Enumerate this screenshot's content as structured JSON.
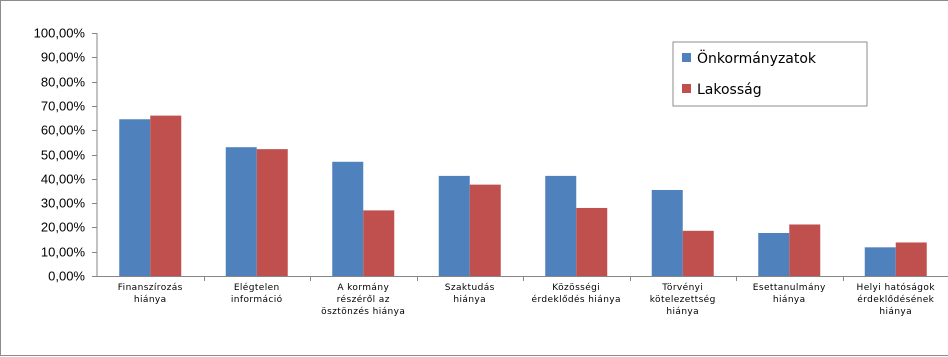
{
  "chart_data": {
    "type": "bar",
    "categories": [
      "Finanszírozás hiánya",
      "Elégtelen információ",
      "A kormány részéről az ösztönzés hiánya",
      "Szaktudás hiánya",
      "Közösségi érdeklődés hiánya",
      "Törvényi kötelezettség hiánya",
      "Esettanulmány hiánya",
      "Helyi hatóságok érdeklődésének hiánya"
    ],
    "category_lines": [
      [
        "Finanszírozás",
        "hiánya"
      ],
      [
        "Elégtelen",
        "információ"
      ],
      [
        "A kormány",
        "részéről az",
        "ösztönzés hiánya"
      ],
      [
        "Szaktudás",
        "hiánya"
      ],
      [
        "Közösségi",
        "érdeklődés hiánya"
      ],
      [
        "Törvényi",
        "kötelezettség",
        "hiánya"
      ],
      [
        "Esettanulmány",
        "hiánya"
      ],
      [
        "Helyi hatóságok",
        "érdeklődésének",
        "hiánya"
      ]
    ],
    "series": [
      {
        "name": "Önkormányzatok",
        "color": "#4f81bd",
        "values": [
          0.645,
          0.53,
          0.47,
          0.412,
          0.412,
          0.354,
          0.177,
          0.118
        ]
      },
      {
        "name": "Lakosság",
        "color": "#c0504d",
        "values": [
          0.66,
          0.522,
          0.27,
          0.376,
          0.28,
          0.186,
          0.212,
          0.138
        ]
      }
    ],
    "ylim": [
      0,
      1
    ],
    "yticks": [
      "0,00%",
      "10,00%",
      "20,00%",
      "30,00%",
      "40,00%",
      "50,00%",
      "60,00%",
      "70,00%",
      "80,00%",
      "90,00%",
      "100,00%"
    ],
    "grid": false,
    "legend_position": "top-right",
    "title": "",
    "xlabel": "",
    "ylabel": ""
  }
}
